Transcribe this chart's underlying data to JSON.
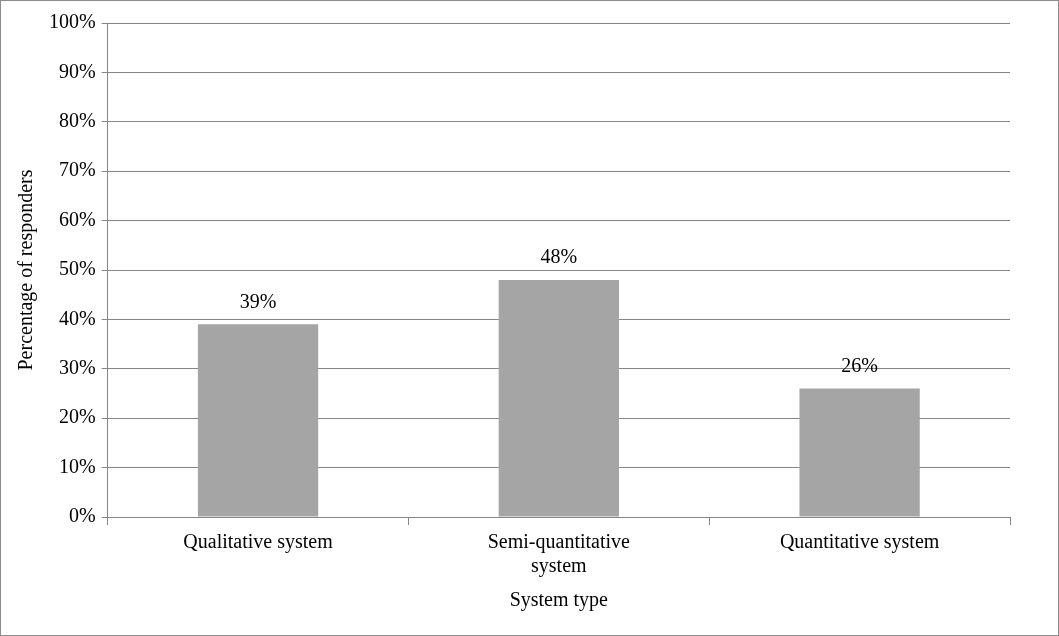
{
  "chart_data": {
    "type": "bar",
    "xlabel": "System type",
    "ylabel": "Percentage of responders",
    "categories": [
      "Qualitative system",
      "Semi-quantitative system",
      "Quantitative system"
    ],
    "values": [
      39,
      48,
      26
    ],
    "color": "#a5a5a5",
    "value_labels": [
      "39%",
      "48%",
      "26%"
    ],
    "ylim": [
      0,
      100
    ],
    "yticks": [
      {
        "value": 0,
        "label": "0%"
      },
      {
        "value": 10,
        "label": "10%"
      },
      {
        "value": 20,
        "label": "20%"
      },
      {
        "value": 30,
        "label": "30%"
      },
      {
        "value": 40,
        "label": "40%"
      },
      {
        "value": 50,
        "label": "50%"
      },
      {
        "value": 60,
        "label": "60%"
      },
      {
        "value": 70,
        "label": "70%"
      },
      {
        "value": 80,
        "label": "80%"
      },
      {
        "value": 90,
        "label": "90%"
      },
      {
        "value": 100,
        "label": "100%"
      }
    ],
    "grid": "y",
    "legend": false
  }
}
